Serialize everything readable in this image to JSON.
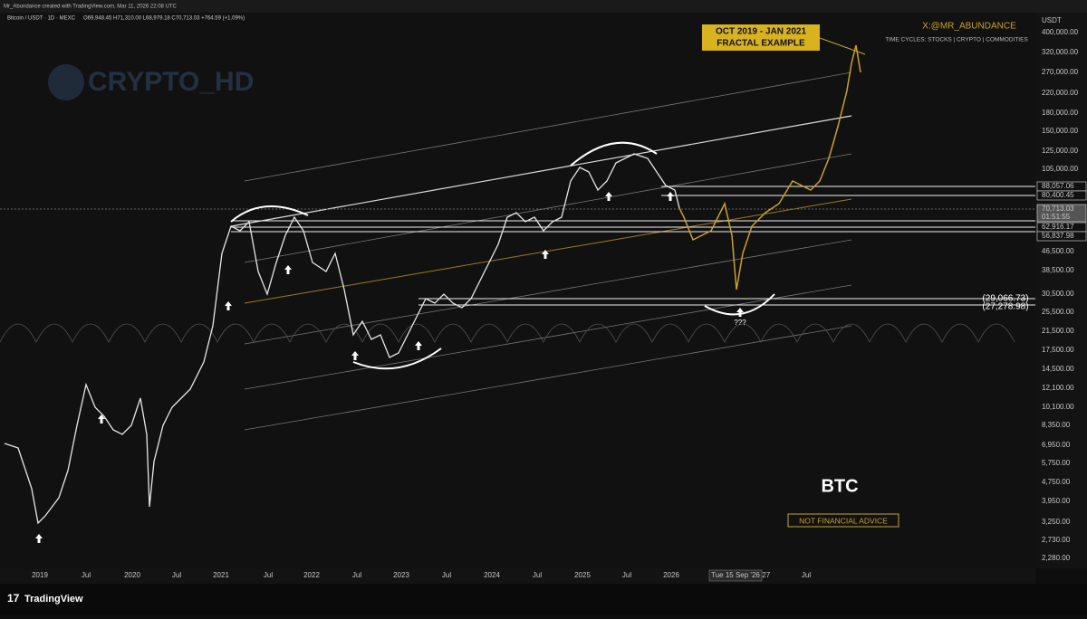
{
  "header": {
    "credit": "Mr_Abundance created with TradingView.com, Mar 11, 2026 22:08 UTC"
  },
  "legend": {
    "symbol": "Bitcoin / USDT · 1D · MEXC",
    "ohlc": "O69,948.45 H71,310.00 L68,979.18 C70,713.03 +764.59 (+1.09%)"
  },
  "watermark": "CRYPTO_HD",
  "price_axis": {
    "currency": "USDT",
    "labels": [
      "400,000.00",
      "320,000.00",
      "270,000.00",
      "220,000.00",
      "180,000.00",
      "150,000.00",
      "125,000.00",
      "105,000.00",
      "46,500.00",
      "38,500.00",
      "30,500.00",
      "25,500.00",
      "21,500.00",
      "17,500.00",
      "14,500.00",
      "12,100.00",
      "10,100.00",
      "8,350.00",
      "6,950.00",
      "5,750.00",
      "4,750.00",
      "3,950.00",
      "3,250.00",
      "2,730.00",
      "2,280.00"
    ],
    "markers": [
      "88,057.06",
      "80,400.45",
      "70,713.03",
      "62,916.17",
      "56,837.98"
    ],
    "countdown": "01:51:55"
  },
  "time_axis": {
    "labels": [
      "2019",
      "Jul",
      "2020",
      "Jul",
      "2021",
      "Jul",
      "2022",
      "Jul",
      "2023",
      "Jul",
      "2024",
      "Jul",
      "2025",
      "Jul",
      "2026",
      "'27",
      "Jul"
    ],
    "cursor": "Tue 15 Sep '26"
  },
  "annotations": {
    "fractal_line1": "OCT 2019 - JAN 2021",
    "fractal_line2": "FRACTAL EXAMPLE",
    "handle": "X:@MR_ABUNDANCE",
    "cycles": "TIME CYCLES: STOCKS | CRYPTO | COMMODITIES",
    "ticker": "BTC",
    "disclaimer": "NOT FINANCIAL ADVICE",
    "level1": "(29,066.73)",
    "level2": "(27,278.98)",
    "question": "???"
  },
  "footer": {
    "brand": "TradingView"
  }
}
